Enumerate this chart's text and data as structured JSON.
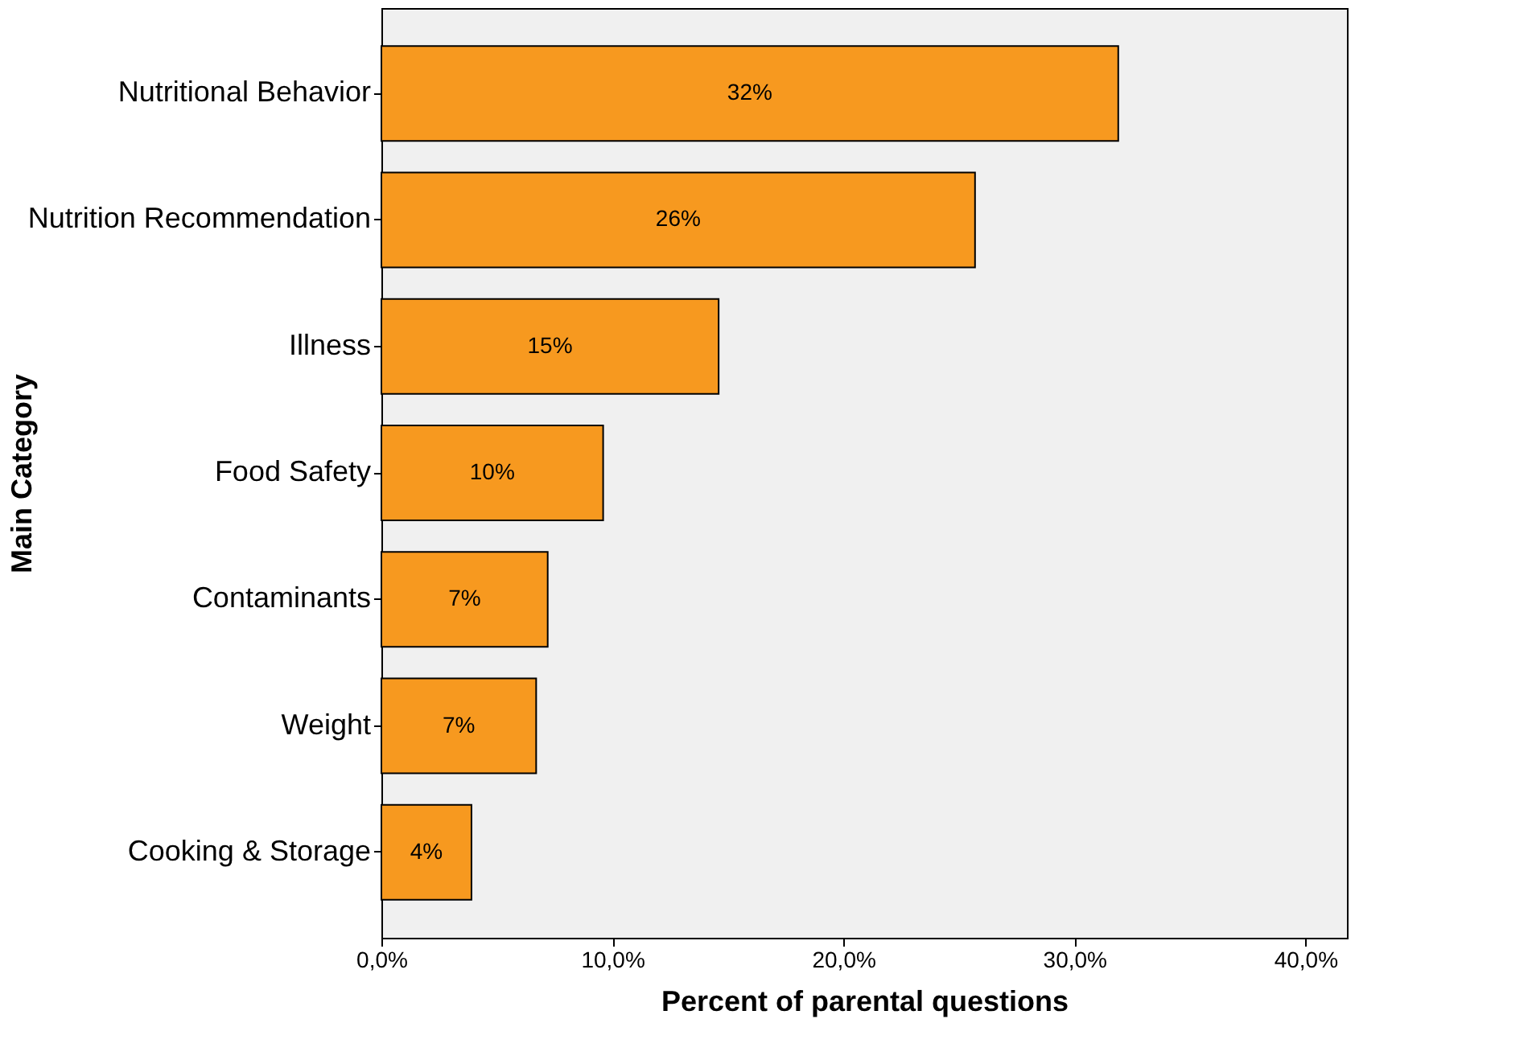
{
  "chart_data": {
    "type": "bar",
    "orientation": "horizontal",
    "xlabel": "Percent of parental questions",
    "ylabel": "Main Category",
    "categories": [
      "Nutritional Behavior",
      "Nutrition Recommendation",
      "Illness",
      "Food Safety",
      "Contaminants",
      "Weight",
      "Cooking & Storage"
    ],
    "values": [
      31.9,
      25.7,
      14.6,
      9.6,
      7.2,
      6.7,
      3.9
    ],
    "value_labels": [
      "32%",
      "26%",
      "15%",
      "10%",
      "7%",
      "7%",
      "4%"
    ],
    "color": "#f7991f",
    "xlim": [
      0,
      41.8
    ],
    "xticks": [
      {
        "value": 0,
        "label": "0,0%"
      },
      {
        "value": 10,
        "label": "10,0%"
      },
      {
        "value": 20,
        "label": "20,0%"
      },
      {
        "value": 30,
        "label": "30,0%"
      },
      {
        "value": 40,
        "label": "40,0%"
      }
    ],
    "grid": false
  }
}
